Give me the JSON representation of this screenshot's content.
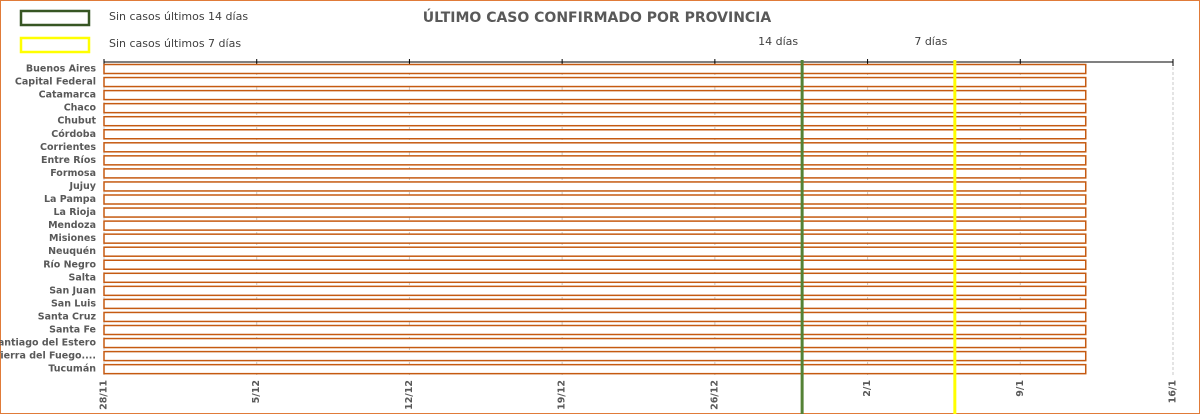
{
  "chart_data": {
    "type": "bar",
    "orientation": "horizontal",
    "title": "ÚLTIMO CASO CONFIRMADO POR PROVINCIA",
    "categories": [
      "Buenos Aires",
      "Capital Federal",
      "Catamarca",
      "Chaco",
      "Chubut",
      "Córdoba",
      "Corrientes",
      "Entre Ríos",
      "Formosa",
      "Jujuy",
      "La Pampa",
      "La Rioja",
      "Mendoza",
      "Misiones",
      "Neuquén",
      "Río Negro",
      "Salta",
      "San Juan",
      "San Luis",
      "Santa Cruz",
      "Santa Fe",
      "Santiago del Estero",
      "Tierra del Fuego....",
      "Tucumán"
    ],
    "values": [
      45,
      45,
      45,
      45,
      45,
      45,
      45,
      45,
      45,
      45,
      45,
      45,
      45,
      45,
      45,
      45,
      45,
      45,
      45,
      45,
      45,
      45,
      45,
      45
    ],
    "color": "#c55a11",
    "xlim": [
      0,
      49
    ],
    "xticks": [
      {
        "value": 0,
        "label": "28/11"
      },
      {
        "value": 7,
        "label": "5/12"
      },
      {
        "value": 14,
        "label": "12/12"
      },
      {
        "value": 21,
        "label": "19/12"
      },
      {
        "value": 28,
        "label": "26/12"
      },
      {
        "value": 35,
        "label": "2/1"
      },
      {
        "value": 42,
        "label": "9/1"
      },
      {
        "value": 49,
        "label": "16/1"
      }
    ],
    "grid": true,
    "legend": [
      {
        "label": "Sin casos últimos 14 días",
        "color": "#375623"
      },
      {
        "label": "Sin casos últimos 7 días",
        "color": "#ffff00"
      }
    ],
    "reference_lines": [
      {
        "value": 32,
        "label": "14 días",
        "color": "#548235"
      },
      {
        "value": 39,
        "label": "7 días",
        "color": "#ffff00"
      }
    ]
  }
}
